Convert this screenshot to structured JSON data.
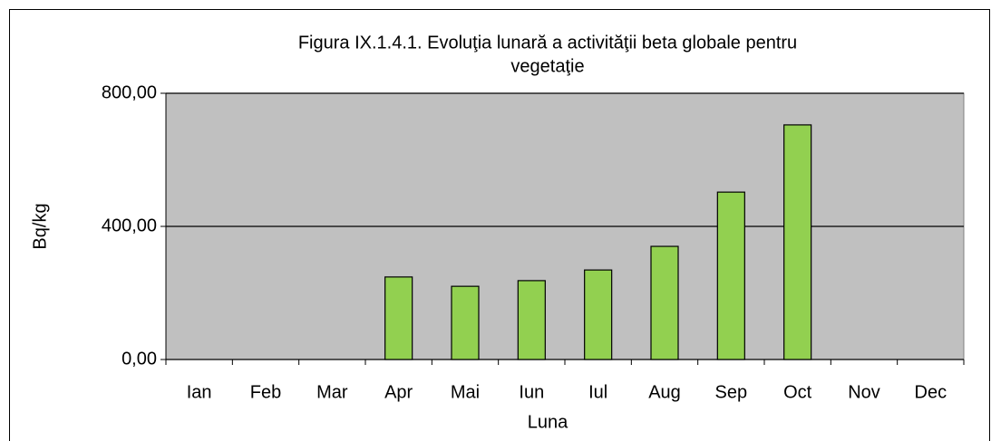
{
  "chart_data": {
    "type": "bar",
    "title": [
      "Figura IX.1.4.1. Evoluţia lunară a activităţii  beta globale pentru",
      "vegetaţie"
    ],
    "ylabel": "Bq/kg",
    "xlabel": "Luna",
    "categories": [
      "Ian",
      "Feb",
      "Mar",
      "Apr",
      "Mai",
      "Iun",
      "Iul",
      "Aug",
      "Sep",
      "Oct",
      "Nov",
      "Dec"
    ],
    "values": [
      null,
      null,
      null,
      248,
      220,
      237,
      269,
      340,
      503,
      705,
      null,
      null
    ],
    "color": "#92d050",
    "ylim": [
      0,
      800
    ],
    "yticks": [
      {
        "value": 0,
        "label": "0,00"
      },
      {
        "value": 400,
        "label": "400,00"
      },
      {
        "value": 800,
        "label": "800,00"
      }
    ],
    "grid": true
  }
}
